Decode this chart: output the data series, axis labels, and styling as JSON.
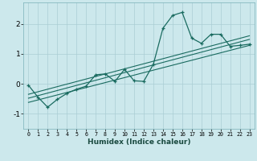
{
  "xlabel": "Humidex (Indice chaleur)",
  "bg_color": "#cce8ec",
  "grid_color": "#aacdd4",
  "line_color": "#1a6b60",
  "xlim": [
    -0.5,
    23.5
  ],
  "ylim": [
    -1.5,
    2.7
  ],
  "yticks": [
    -1,
    0,
    1,
    2
  ],
  "xticks": [
    0,
    1,
    2,
    3,
    4,
    5,
    6,
    7,
    8,
    9,
    10,
    11,
    12,
    13,
    14,
    15,
    16,
    17,
    18,
    19,
    20,
    21,
    22,
    23
  ],
  "main_line_x": [
    0,
    1,
    2,
    3,
    4,
    5,
    6,
    7,
    8,
    9,
    10,
    11,
    12,
    13,
    14,
    15,
    16,
    17,
    18,
    19,
    20,
    21,
    22,
    23
  ],
  "main_line_y": [
    -0.05,
    -0.45,
    -0.78,
    -0.52,
    -0.32,
    -0.18,
    -0.08,
    0.3,
    0.33,
    0.08,
    0.48,
    0.1,
    0.08,
    0.65,
    1.85,
    2.28,
    2.38,
    1.52,
    1.35,
    1.65,
    1.65,
    1.25,
    1.28,
    1.32
  ],
  "reg_line1_x": [
    0,
    23
  ],
  "reg_line1_y": [
    -0.62,
    1.28
  ],
  "reg_line2_x": [
    0,
    23
  ],
  "reg_line2_y": [
    -0.48,
    1.48
  ],
  "reg_line3_x": [
    0,
    23
  ],
  "reg_line3_y": [
    -0.35,
    1.6
  ]
}
